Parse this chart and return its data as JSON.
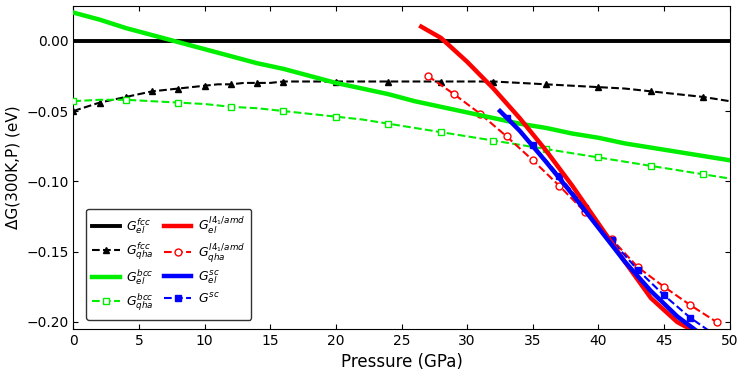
{
  "xlim": [
    0,
    50
  ],
  "ylim": [
    -0.205,
    0.025
  ],
  "xlabel": "Pressure (GPa)",
  "ylabel": "ΔG(300K,P) (eV)",
  "yticks": [
    0.0,
    -0.05,
    -0.1,
    -0.15,
    -0.2
  ],
  "xticks": [
    0,
    5,
    10,
    15,
    20,
    25,
    30,
    35,
    40,
    45,
    50
  ],
  "colors": {
    "fcc": "black",
    "bcc": "#00ee00",
    "i41amd": "red",
    "sc": "blue"
  },
  "fcc_el": {
    "x": [
      0,
      50
    ],
    "y": [
      0.0,
      0.0
    ]
  },
  "fcc_qha": {
    "x": [
      0,
      1,
      2,
      3,
      4,
      5,
      6,
      7,
      8,
      9,
      10,
      11,
      12,
      13,
      14,
      15,
      16,
      18,
      20,
      22,
      24,
      26,
      28,
      30,
      32,
      34,
      36,
      38,
      40,
      42,
      44,
      46,
      48,
      50
    ],
    "y": [
      -0.05,
      -0.047,
      -0.044,
      -0.042,
      -0.04,
      -0.038,
      -0.036,
      -0.035,
      -0.034,
      -0.033,
      -0.032,
      -0.031,
      -0.031,
      -0.03,
      -0.03,
      -0.03,
      -0.029,
      -0.029,
      -0.029,
      -0.029,
      -0.029,
      -0.029,
      -0.029,
      -0.029,
      -0.029,
      -0.03,
      -0.031,
      -0.032,
      -0.033,
      -0.034,
      -0.036,
      -0.038,
      -0.04,
      -0.043
    ]
  },
  "bcc_el": {
    "x": [
      0,
      2,
      4,
      6,
      8,
      10,
      12,
      14,
      16,
      18,
      20,
      22,
      24,
      26,
      28,
      30,
      32,
      34,
      36,
      38,
      40,
      42,
      44,
      46,
      48,
      50
    ],
    "y": [
      0.02,
      0.015,
      0.009,
      0.004,
      -0.001,
      -0.006,
      -0.011,
      -0.016,
      -0.02,
      -0.025,
      -0.03,
      -0.034,
      -0.038,
      -0.043,
      -0.047,
      -0.051,
      -0.055,
      -0.059,
      -0.062,
      -0.066,
      -0.069,
      -0.073,
      -0.076,
      -0.079,
      -0.082,
      -0.085
    ]
  },
  "bcc_qha": {
    "x": [
      0,
      2,
      4,
      6,
      8,
      10,
      12,
      14,
      16,
      18,
      20,
      22,
      24,
      26,
      28,
      30,
      32,
      34,
      36,
      38,
      40,
      42,
      44,
      46,
      48,
      50
    ],
    "y": [
      -0.043,
      -0.042,
      -0.042,
      -0.043,
      -0.044,
      -0.045,
      -0.047,
      -0.048,
      -0.05,
      -0.052,
      -0.054,
      -0.056,
      -0.059,
      -0.062,
      -0.065,
      -0.068,
      -0.071,
      -0.074,
      -0.077,
      -0.08,
      -0.083,
      -0.086,
      -0.089,
      -0.092,
      -0.095,
      -0.098
    ]
  },
  "i41amd_el": {
    "x": [
      26.5,
      28,
      30,
      32,
      34,
      36,
      38,
      40,
      42,
      44,
      46,
      48,
      50
    ],
    "y": [
      0.01,
      0.002,
      -0.015,
      -0.034,
      -0.055,
      -0.078,
      -0.103,
      -0.13,
      -0.157,
      -0.183,
      -0.2,
      -0.21,
      -0.22
    ]
  },
  "i41amd_qha": {
    "x": [
      27,
      29,
      31,
      33,
      35,
      37,
      39,
      41,
      43,
      45,
      47,
      49
    ],
    "y": [
      -0.025,
      -0.038,
      -0.052,
      -0.068,
      -0.085,
      -0.103,
      -0.122,
      -0.141,
      -0.161,
      -0.175,
      -0.188,
      -0.2
    ]
  },
  "sc_el": {
    "x": [
      32.5,
      34,
      36,
      38,
      40,
      42,
      44,
      46,
      48,
      50
    ],
    "y": [
      -0.05,
      -0.064,
      -0.086,
      -0.109,
      -0.133,
      -0.157,
      -0.178,
      -0.196,
      -0.21,
      -0.22
    ]
  },
  "sc_qha": {
    "x": [
      33,
      35,
      37,
      39,
      41,
      43,
      45,
      47,
      49
    ],
    "y": [
      -0.055,
      -0.074,
      -0.096,
      -0.119,
      -0.142,
      -0.163,
      -0.181,
      -0.197,
      -0.21
    ]
  }
}
